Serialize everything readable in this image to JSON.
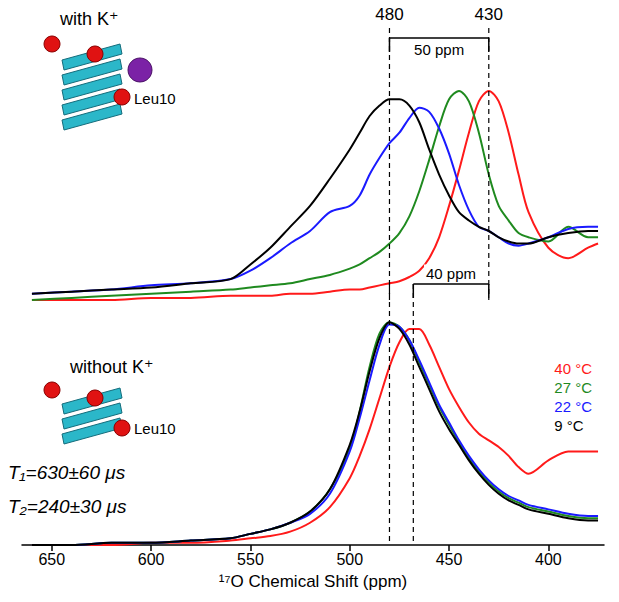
{
  "chart_data": [
    {
      "type": "line",
      "title": "with K⁺",
      "x": [
        660,
        640,
        620,
        600,
        580,
        560,
        550,
        540,
        530,
        520,
        510,
        500,
        495,
        490,
        485,
        480,
        475,
        470,
        465,
        460,
        455,
        450,
        445,
        440,
        435,
        430,
        425,
        420,
        415,
        410,
        400,
        390,
        380,
        375
      ],
      "series": [
        {
          "name": "40 °C",
          "color": "#ff1a1a",
          "values": [
            0.0,
            0.0,
            0.0,
            0.01,
            0.01,
            0.02,
            0.02,
            0.02,
            0.03,
            0.03,
            0.04,
            0.05,
            0.05,
            0.06,
            0.07,
            0.08,
            0.09,
            0.11,
            0.14,
            0.2,
            0.3,
            0.45,
            0.62,
            0.8,
            0.95,
            1.0,
            0.95,
            0.8,
            0.6,
            0.42,
            0.25,
            0.2,
            0.25,
            0.27
          ]
        },
        {
          "name": "27 °C",
          "color": "#1f8a1f",
          "values": [
            0.0,
            0.01,
            0.02,
            0.03,
            0.04,
            0.05,
            0.06,
            0.07,
            0.08,
            0.1,
            0.12,
            0.15,
            0.17,
            0.2,
            0.23,
            0.27,
            0.32,
            0.4,
            0.52,
            0.67,
            0.83,
            0.96,
            1.0,
            0.95,
            0.8,
            0.6,
            0.45,
            0.38,
            0.32,
            0.3,
            0.28,
            0.35,
            0.3,
            0.3
          ]
        },
        {
          "name": "22 °C",
          "color": "#1a1aff",
          "values": [
            0.03,
            0.04,
            0.05,
            0.07,
            0.08,
            0.1,
            0.14,
            0.2,
            0.27,
            0.33,
            0.42,
            0.45,
            0.5,
            0.6,
            0.68,
            0.75,
            0.8,
            0.87,
            0.92,
            0.9,
            0.82,
            0.7,
            0.55,
            0.43,
            0.35,
            0.33,
            0.3,
            0.27,
            0.26,
            0.27,
            0.3,
            0.34,
            0.35,
            0.35
          ]
        },
        {
          "name": "9 °C",
          "color": "#000000",
          "values": [
            0.03,
            0.04,
            0.05,
            0.06,
            0.08,
            0.1,
            0.17,
            0.25,
            0.35,
            0.45,
            0.58,
            0.72,
            0.8,
            0.88,
            0.93,
            0.96,
            0.96,
            0.93,
            0.85,
            0.72,
            0.6,
            0.5,
            0.42,
            0.38,
            0.35,
            0.33,
            0.3,
            0.28,
            0.27,
            0.27,
            0.3,
            0.32,
            0.33,
            0.33
          ]
        }
      ],
      "xlim": [
        665,
        372
      ],
      "ylim": [
        0,
        1.1
      ],
      "tick_labels": false,
      "reference_lines": [
        {
          "value": 480,
          "label": "480"
        },
        {
          "value": 430,
          "label": "430"
        }
      ],
      "bracket": {
        "label": "50 ppm",
        "from": 480,
        "to": 430
      },
      "labels": [
        "Leu10"
      ]
    },
    {
      "type": "line",
      "title": "without K⁺",
      "x": [
        660,
        640,
        620,
        600,
        580,
        560,
        550,
        540,
        530,
        520,
        510,
        500,
        495,
        490,
        485,
        480,
        475,
        470,
        465,
        460,
        455,
        450,
        445,
        440,
        435,
        430,
        425,
        420,
        415,
        410,
        400,
        390,
        380,
        375
      ],
      "series": [
        {
          "name": "40 °C",
          "color": "#ff1a1a",
          "values": [
            0.0,
            0.0,
            0.0,
            0.01,
            0.01,
            0.02,
            0.03,
            0.04,
            0.06,
            0.1,
            0.17,
            0.3,
            0.4,
            0.52,
            0.66,
            0.8,
            0.91,
            0.97,
            0.97,
            0.9,
            0.8,
            0.7,
            0.62,
            0.55,
            0.5,
            0.47,
            0.44,
            0.4,
            0.35,
            0.32,
            0.38,
            0.42,
            0.42,
            0.42
          ]
        },
        {
          "name": "27 °C",
          "color": "#1f8a1f",
          "values": [
            0.0,
            0.0,
            0.01,
            0.01,
            0.02,
            0.03,
            0.05,
            0.07,
            0.1,
            0.15,
            0.25,
            0.43,
            0.6,
            0.8,
            0.95,
            1.0,
            0.98,
            0.92,
            0.82,
            0.72,
            0.62,
            0.54,
            0.46,
            0.39,
            0.33,
            0.28,
            0.24,
            0.21,
            0.19,
            0.17,
            0.15,
            0.13,
            0.12,
            0.12
          ]
        },
        {
          "name": "22 °C",
          "color": "#1a1aff",
          "values": [
            0.0,
            0.0,
            0.01,
            0.01,
            0.02,
            0.03,
            0.05,
            0.07,
            0.1,
            0.14,
            0.23,
            0.42,
            0.57,
            0.74,
            0.9,
            0.99,
            0.98,
            0.92,
            0.83,
            0.73,
            0.63,
            0.55,
            0.47,
            0.4,
            0.34,
            0.29,
            0.25,
            0.22,
            0.2,
            0.18,
            0.16,
            0.14,
            0.13,
            0.13
          ]
        },
        {
          "name": "9 °C",
          "color": "#000000",
          "values": [
            0.0,
            0.0,
            0.01,
            0.01,
            0.02,
            0.03,
            0.05,
            0.07,
            0.1,
            0.15,
            0.25,
            0.45,
            0.6,
            0.78,
            0.93,
            1.0,
            0.97,
            0.9,
            0.8,
            0.7,
            0.6,
            0.52,
            0.45,
            0.38,
            0.32,
            0.27,
            0.23,
            0.2,
            0.18,
            0.16,
            0.14,
            0.12,
            0.11,
            0.11
          ]
        }
      ],
      "xlim": [
        665,
        372
      ],
      "xticks": [
        650,
        600,
        550,
        500,
        450,
        400
      ],
      "ylim": [
        0,
        1.1
      ],
      "x_label": "¹⁷O Chemical Shift (ppm)",
      "tick_labels": "x",
      "legend": "upper right",
      "reference_lines": [
        480,
        468
      ],
      "bracket": {
        "label": "40 ppm",
        "from": 468,
        "to": 430
      },
      "labels": [
        "Leu10",
        "T₁=630±60 μs",
        "T₂=240±30 μs"
      ]
    }
  ]
}
